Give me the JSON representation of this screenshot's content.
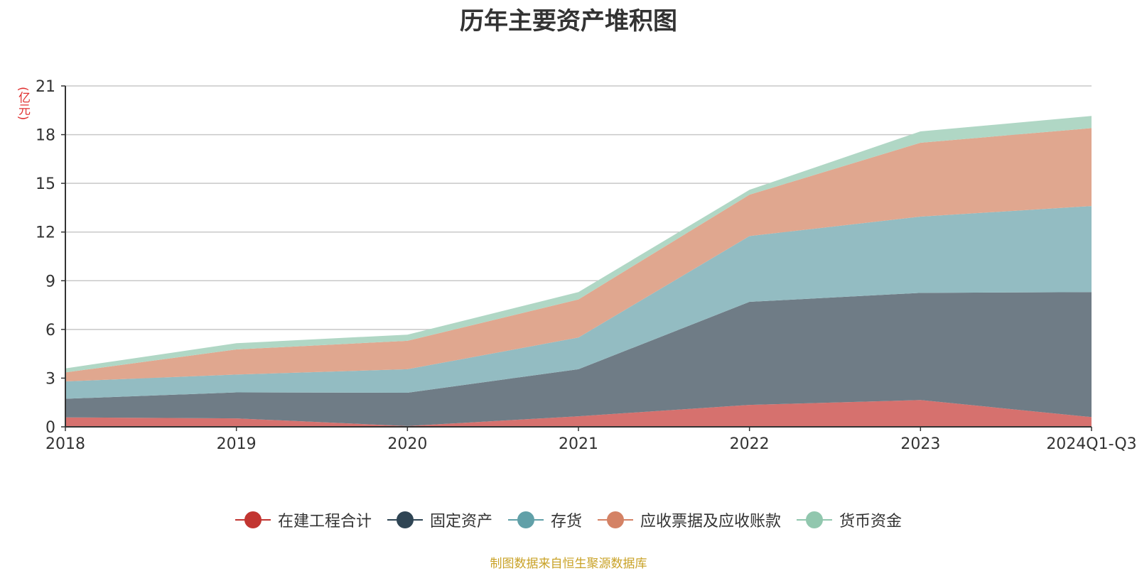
{
  "chart_data": {
    "type": "area",
    "stacked": true,
    "title": "历年主要资产堆积图",
    "y_unit": "(亿元)",
    "x": [
      "2018",
      "2019",
      "2020",
      "2021",
      "2022",
      "2023",
      "2024Q1-Q3"
    ],
    "ylim": [
      0,
      21
    ],
    "y_ticks": [
      "0",
      "3",
      "6",
      "9",
      "12",
      "15",
      "18",
      "21"
    ],
    "grid": true,
    "legend_position": "bottom",
    "series": [
      {
        "name": "在建工程合计",
        "color": "#c23531",
        "fill": "#d6716e",
        "values": [
          0.58,
          0.52,
          0.05,
          0.65,
          1.35,
          1.65,
          0.6
        ]
      },
      {
        "name": "固定资产",
        "color": "#2f4554",
        "fill": "#6f7c86",
        "values": [
          1.15,
          1.6,
          2.05,
          2.9,
          6.35,
          6.6,
          7.7
        ]
      },
      {
        "name": "存货",
        "color": "#61a0a8",
        "fill": "#93bcc2",
        "values": [
          1.07,
          1.1,
          1.45,
          1.95,
          4.05,
          4.7,
          5.3
        ]
      },
      {
        "name": "应收票据及应收账款",
        "color": "#d48265",
        "fill": "#e0a78f",
        "values": [
          0.55,
          1.55,
          1.75,
          2.35,
          2.55,
          4.55,
          4.8
        ]
      },
      {
        "name": "货币资金",
        "color": "#91c7ae",
        "fill": "#b0d7c5",
        "values": [
          0.25,
          0.38,
          0.38,
          0.45,
          0.3,
          0.7,
          0.75
        ]
      }
    ],
    "source": "制图数据来自恒生聚源数据库"
  }
}
